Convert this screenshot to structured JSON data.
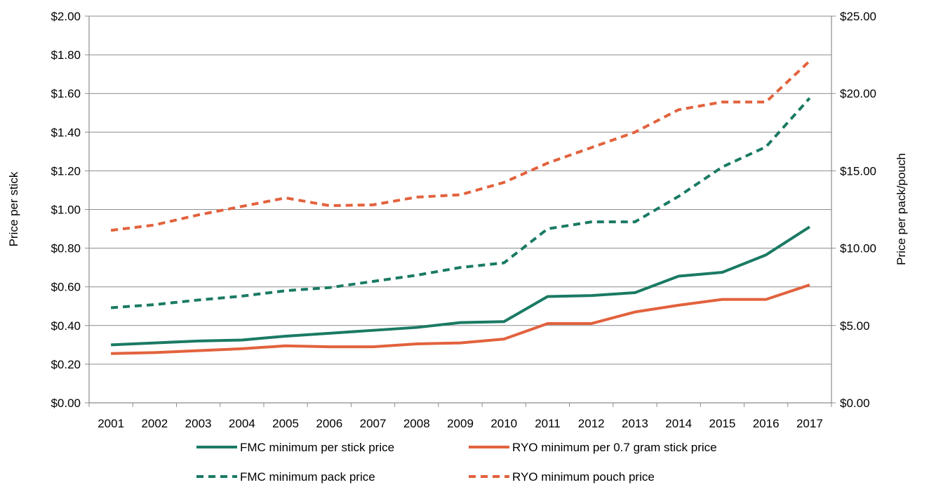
{
  "chart_data": {
    "type": "line",
    "title": "",
    "x": [
      "2001",
      "2002",
      "2003",
      "2004",
      "2005",
      "2006",
      "2007",
      "2008",
      "2009",
      "2010",
      "2011",
      "2012",
      "2013",
      "2014",
      "2015",
      "2016",
      "2017"
    ],
    "y_left": {
      "label": "Price per stick",
      "range": [
        0,
        2.0
      ],
      "ticks": [
        "$0.00",
        "$0.20",
        "$0.40",
        "$0.60",
        "$0.80",
        "$1.00",
        "$1.20",
        "$1.40",
        "$1.60",
        "$1.80",
        "$2.00"
      ]
    },
    "y_right": {
      "label": "Price per pack/pouch",
      "range": [
        0,
        25.0
      ],
      "ticks": [
        "$0.00",
        "$5.00",
        "$10.00",
        "$15.00",
        "$20.00",
        "$25.00"
      ]
    },
    "grid": "horizontal",
    "legend_position": "bottom",
    "series": [
      {
        "name": "FMC minimum per stick price",
        "axis": "left",
        "style": "solid",
        "color": "#1a7a63",
        "values": [
          0.3,
          0.31,
          0.32,
          0.325,
          0.345,
          0.36,
          0.375,
          0.39,
          0.415,
          0.42,
          0.55,
          0.555,
          0.57,
          0.655,
          0.675,
          0.765,
          0.91
        ]
      },
      {
        "name": "RYO minimum per 0.7 gram stick price",
        "axis": "left",
        "style": "solid",
        "color": "#e2623d",
        "values": [
          0.255,
          0.26,
          0.27,
          0.28,
          0.295,
          0.29,
          0.29,
          0.305,
          0.31,
          0.33,
          0.41,
          0.41,
          0.47,
          0.505,
          0.535,
          0.535,
          0.61
        ]
      },
      {
        "name": "FMC minimum pack price",
        "axis": "right",
        "style": "dashed",
        "color": "#1a7a63",
        "values": [
          6.15,
          6.35,
          6.65,
          6.9,
          7.25,
          7.45,
          7.85,
          8.25,
          8.75,
          9.05,
          11.25,
          11.7,
          11.7,
          13.35,
          15.25,
          16.55,
          19.7
        ]
      },
      {
        "name": "RYO minimum pouch price",
        "axis": "right",
        "style": "dashed",
        "color": "#e2623d",
        "values": [
          11.15,
          11.5,
          12.15,
          12.7,
          13.25,
          12.75,
          12.8,
          13.3,
          13.45,
          14.25,
          15.5,
          16.5,
          17.5,
          18.95,
          19.45,
          19.45,
          22.1
        ]
      }
    ]
  }
}
